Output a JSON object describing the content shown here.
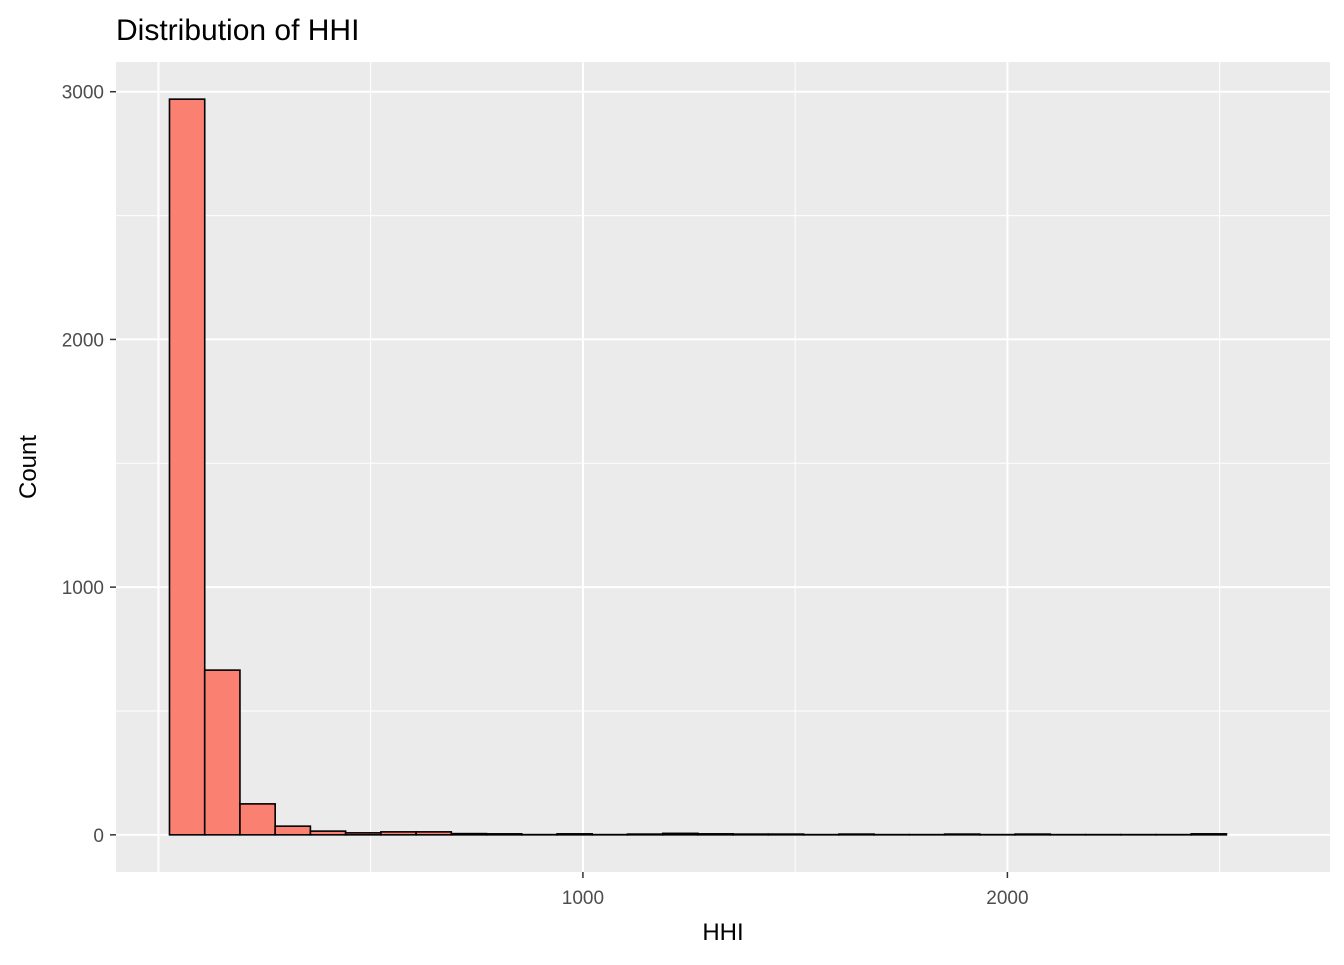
{
  "chart_data": {
    "type": "bar",
    "title": "Distribution of HHI",
    "xlabel": "HHI",
    "ylabel": "Count",
    "x_ticks": [
      1000,
      2000
    ],
    "y_ticks": [
      0,
      1000,
      2000,
      3000
    ],
    "xlim": [
      -100,
      2760
    ],
    "ylim": [
      -150,
      3120
    ],
    "grid": true,
    "legend": "none",
    "bar_fill": "#FA8072",
    "bar_outline": "#000000",
    "panel_background": "#EBEBEB",
    "gridline_color": "#FFFFFF",
    "bins": [
      {
        "x0": 26,
        "x1": 109,
        "count": 2970
      },
      {
        "x0": 109,
        "x1": 192,
        "count": 665
      },
      {
        "x0": 192,
        "x1": 275,
        "count": 125
      },
      {
        "x0": 275,
        "x1": 358,
        "count": 35
      },
      {
        "x0": 358,
        "x1": 441,
        "count": 15
      },
      {
        "x0": 441,
        "x1": 524,
        "count": 8
      },
      {
        "x0": 524,
        "x1": 607,
        "count": 12
      },
      {
        "x0": 607,
        "x1": 690,
        "count": 12
      },
      {
        "x0": 690,
        "x1": 773,
        "count": 5
      },
      {
        "x0": 773,
        "x1": 856,
        "count": 4
      },
      {
        "x0": 856,
        "x1": 939,
        "count": 1
      },
      {
        "x0": 939,
        "x1": 1022,
        "count": 4
      },
      {
        "x0": 1022,
        "x1": 1105,
        "count": 1
      },
      {
        "x0": 1105,
        "x1": 1188,
        "count": 3
      },
      {
        "x0": 1188,
        "x1": 1271,
        "count": 6
      },
      {
        "x0": 1271,
        "x1": 1354,
        "count": 4
      },
      {
        "x0": 1354,
        "x1": 1437,
        "count": 3
      },
      {
        "x0": 1437,
        "x1": 1520,
        "count": 3
      },
      {
        "x0": 1520,
        "x1": 1603,
        "count": 1
      },
      {
        "x0": 1603,
        "x1": 1686,
        "count": 3
      },
      {
        "x0": 1686,
        "x1": 1769,
        "count": 1
      },
      {
        "x0": 1769,
        "x1": 1852,
        "count": 1
      },
      {
        "x0": 1852,
        "x1": 1935,
        "count": 3
      },
      {
        "x0": 1935,
        "x1": 2018,
        "count": 1
      },
      {
        "x0": 2018,
        "x1": 2101,
        "count": 3
      },
      {
        "x0": 2101,
        "x1": 2184,
        "count": 1
      },
      {
        "x0": 2184,
        "x1": 2267,
        "count": 1
      },
      {
        "x0": 2267,
        "x1": 2350,
        "count": 1
      },
      {
        "x0": 2350,
        "x1": 2433,
        "count": 1
      },
      {
        "x0": 2433,
        "x1": 2516,
        "count": 4
      }
    ]
  }
}
